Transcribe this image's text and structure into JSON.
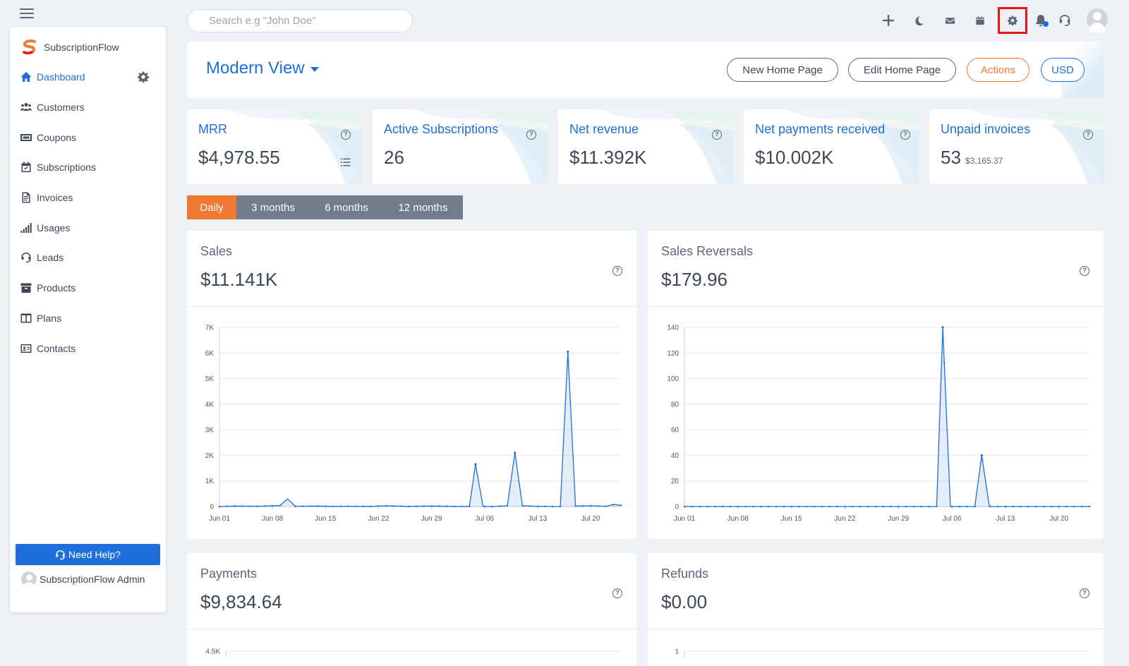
{
  "sidebar": {
    "brand": "SubscriptionFlow",
    "items": [
      {
        "label": "Dashboard",
        "icon": "home-icon",
        "active": true
      },
      {
        "label": "Customers",
        "icon": "users-icon"
      },
      {
        "label": "Coupons",
        "icon": "coupon-icon"
      },
      {
        "label": "Subscriptions",
        "icon": "calendar-check-icon"
      },
      {
        "label": "Invoices",
        "icon": "invoice-icon"
      },
      {
        "label": "Usages",
        "icon": "signal-bars-icon"
      },
      {
        "label": "Leads",
        "icon": "headset-icon"
      },
      {
        "label": "Products",
        "icon": "archive-box-icon"
      },
      {
        "label": "Plans",
        "icon": "columns-icon"
      },
      {
        "label": "Contacts",
        "icon": "contact-card-icon"
      }
    ],
    "help_label": "Need Help?",
    "admin_name": "SubscriptionFlow Admin"
  },
  "topbar": {
    "search_placeholder": "Search e.g \"John Doe\"",
    "icons": [
      "plus-icon",
      "moon-icon",
      "mail-icon",
      "calendar-icon",
      "gear-icon",
      "bell-icon",
      "headset-icon"
    ]
  },
  "header": {
    "view_title": "Modern View",
    "buttons": [
      "New Home Page",
      "Edit Home Page",
      "Actions",
      "USD"
    ]
  },
  "kpis": [
    {
      "title": "MRR",
      "value": "$4,978.55",
      "sub": ""
    },
    {
      "title": "Active Subscriptions",
      "value": "26",
      "sub": ""
    },
    {
      "title": "Net revenue",
      "value": "$11.392K",
      "sub": ""
    },
    {
      "title": "Net payments received",
      "value": "$10.002K",
      "sub": ""
    },
    {
      "title": "Unpaid invoices",
      "value": "53",
      "sub": "$3,165.37"
    }
  ],
  "periods": [
    {
      "label": "Daily",
      "active": true
    },
    {
      "label": "3 months"
    },
    {
      "label": "6 months"
    },
    {
      "label": "12 months"
    }
  ],
  "cards": [
    {
      "title": "Sales",
      "value": "$11.141K"
    },
    {
      "title": "Sales Reversals",
      "value": "$179.96"
    },
    {
      "title": "Payments",
      "value": "$9,834.64"
    },
    {
      "title": "Refunds",
      "value": "$0.00"
    }
  ],
  "colors": {
    "accent": "#1e6fd9",
    "orange": "#f07a32",
    "tab_gray": "#717c8c",
    "highlight": "#e6151d"
  },
  "chart_data": [
    {
      "type": "area",
      "x_ticks": [
        "Jun 01",
        "Jun 08",
        "Jun 15",
        "Jun 22",
        "Jun 29",
        "Jul 06",
        "Jul 13",
        "Jul 20"
      ],
      "y_ticks": [
        "0",
        "1K",
        "2K",
        "3K",
        "4K",
        "5K",
        "6K",
        "7K"
      ],
      "ylim": [
        0,
        7000
      ],
      "x_start_day": 0,
      "x_end_day": 53,
      "points": [
        [
          0,
          0
        ],
        [
          2,
          20
        ],
        [
          5,
          10
        ],
        [
          8,
          40
        ],
        [
          9,
          300
        ],
        [
          10,
          10
        ],
        [
          13,
          20
        ],
        [
          15,
          5
        ],
        [
          17,
          10
        ],
        [
          20,
          5
        ],
        [
          22,
          30
        ],
        [
          25,
          5
        ],
        [
          28,
          20
        ],
        [
          31,
          5
        ],
        [
          33,
          5
        ],
        [
          33.8,
          1650
        ],
        [
          34.8,
          0
        ],
        [
          36,
          0
        ],
        [
          38,
          30
        ],
        [
          39,
          2100
        ],
        [
          40,
          30
        ],
        [
          42,
          10
        ],
        [
          45,
          0
        ],
        [
          46,
          6050
        ],
        [
          47,
          20
        ],
        [
          49,
          30
        ],
        [
          51,
          10
        ],
        [
          52,
          80
        ],
        [
          53,
          50
        ]
      ]
    },
    {
      "type": "area",
      "x_ticks": [
        "Jun 01",
        "Jun 08",
        "Jun 15",
        "Jun 22",
        "Jun 29",
        "Jul 06",
        "Jul 13",
        "Jul 20"
      ],
      "y_ticks": [
        "0",
        "20",
        "40",
        "60",
        "80",
        "100",
        "120",
        "140"
      ],
      "ylim": [
        0,
        140
      ],
      "x_start_day": 0,
      "x_end_day": 53,
      "points": [
        [
          0,
          0
        ],
        [
          32,
          0
        ],
        [
          33,
          0
        ],
        [
          33.8,
          140
        ],
        [
          34.8,
          0
        ],
        [
          38,
          0
        ],
        [
          38.9,
          40
        ],
        [
          39.9,
          0
        ],
        [
          53,
          0
        ]
      ]
    },
    {
      "type": "area",
      "y_ticks": [
        "4.5K"
      ],
      "ylim": [
        0,
        4500
      ]
    },
    {
      "type": "area",
      "y_ticks": [
        "1"
      ],
      "ylim": [
        0,
        1
      ]
    }
  ]
}
